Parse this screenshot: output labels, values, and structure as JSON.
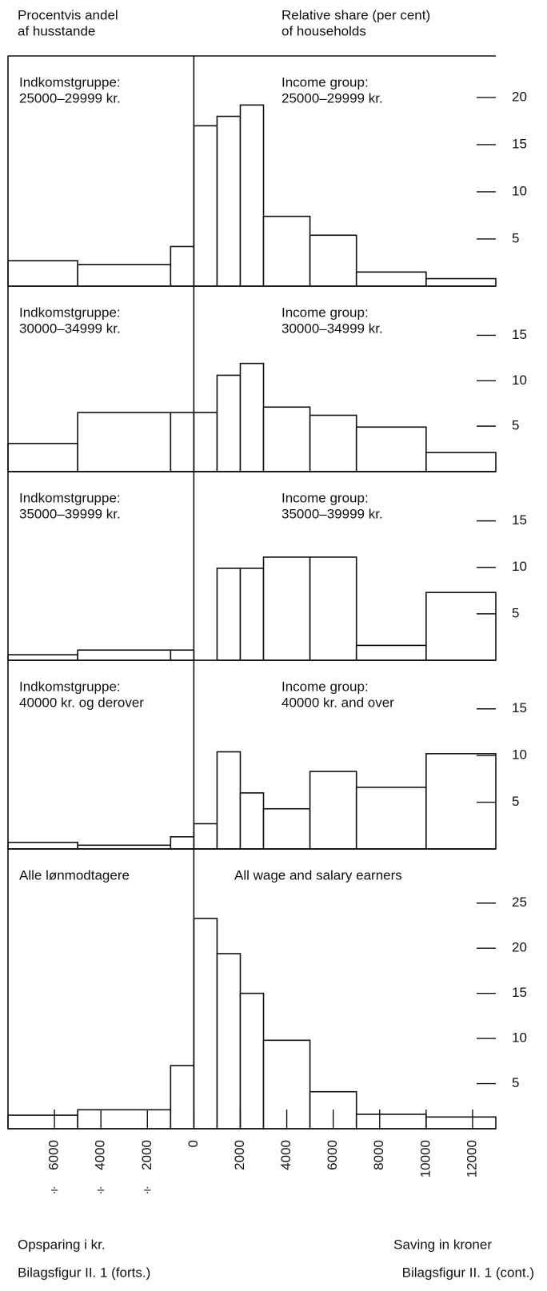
{
  "header": {
    "left": [
      "Procentvis andel",
      "af husstande"
    ],
    "right": [
      "Relative share (per cent)",
      "of households"
    ]
  },
  "chart_data": [
    {
      "type": "histogram",
      "label_da": [
        "Indkomstgruppe:",
        "25000–29999 kr."
      ],
      "label_en": [
        "Income group:",
        "25000–29999 kr."
      ],
      "bins": [
        -8000,
        -5000,
        -1000,
        0,
        1000,
        2000,
        3000,
        5000,
        7000,
        10000,
        13000
      ],
      "values": [
        2.7,
        2.3,
        4.2,
        17,
        18,
        19.2,
        7.4,
        5.4,
        1.5,
        0.8
      ],
      "xlim": [
        -8000,
        13000
      ],
      "ylim": [
        0,
        24.4
      ],
      "yticks": [
        5,
        10,
        15,
        20
      ]
    },
    {
      "type": "histogram",
      "label_da": [
        "Indkomstgruppe:",
        "30000–34999 kr."
      ],
      "label_en": [
        "Income group:",
        "30000–34999 kr."
      ],
      "bins": [
        -8000,
        -5000,
        -1000,
        0,
        1000,
        2000,
        3000,
        5000,
        7000,
        10000,
        13000
      ],
      "values": [
        3.1,
        6.5,
        6.5,
        6.5,
        10.6,
        11.9,
        7.1,
        6.2,
        4.9,
        2.1
      ],
      "xlim": [
        -8000,
        13000
      ],
      "ylim": [
        0,
        20.4
      ],
      "yticks": [
        5,
        10,
        15
      ]
    },
    {
      "type": "histogram",
      "label_da": [
        "Indkomstgruppe:",
        "35000–39999 kr."
      ],
      "label_en": [
        "Income group:",
        "35000–39999 kr."
      ],
      "bins": [
        -8000,
        -5000,
        -1000,
        0,
        1000,
        2000,
        3000,
        5000,
        7000,
        10000,
        13000
      ],
      "values": [
        0.6,
        1.1,
        1.1,
        0,
        9.9,
        9.9,
        11.1,
        11.1,
        1.6,
        7.3
      ],
      "xlim": [
        -8000,
        13000
      ],
      "ylim": [
        0,
        20.3
      ],
      "yticks": [
        5,
        10,
        15
      ]
    },
    {
      "type": "histogram",
      "label_da": [
        "Indkomstgruppe:",
        "40000 kr. og derover"
      ],
      "label_en": [
        "Income group:",
        "40000 kr. and over"
      ],
      "bins": [
        -8000,
        -5000,
        -1000,
        0,
        1000,
        2000,
        3000,
        5000,
        7000,
        10000,
        13000
      ],
      "values": [
        0.7,
        0.4,
        1.3,
        2.7,
        10.4,
        6.0,
        4.3,
        8.3,
        6.6,
        10.2
      ],
      "xlim": [
        -8000,
        13000
      ],
      "ylim": [
        0,
        20.2
      ],
      "yticks": [
        5,
        10,
        15
      ]
    },
    {
      "type": "histogram",
      "label_da": [
        "Alle lønmodtagere"
      ],
      "label_en": [
        "All wage and salary earners"
      ],
      "bins": [
        -8000,
        -5000,
        -1000,
        0,
        1000,
        2000,
        3000,
        5000,
        7000,
        10000,
        13000
      ],
      "values": [
        1.5,
        2.1,
        7.0,
        23.3,
        19.4,
        15.0,
        9.8,
        4.1,
        1.6,
        1.3
      ],
      "xlim": [
        -8000,
        13000
      ],
      "ylim": [
        0,
        31
      ],
      "yticks": [
        5,
        10,
        15,
        20,
        25
      ],
      "xticks": [
        {
          "value": -6000,
          "label": "6000"
        },
        {
          "value": -4000,
          "label": "4000"
        },
        {
          "value": -2000,
          "label": "2000"
        },
        0,
        2000,
        4000,
        6000,
        8000,
        10000,
        12000
      ],
      "xtick_sign": "÷",
      "xlabel_da": "Opsparing i kr.",
      "xlabel_en": "Saving in kroner"
    }
  ],
  "footer": {
    "left": "Bilagsfigur II. 1 (forts.)",
    "right": "Bilagsfigur II. 1 (cont.)"
  }
}
